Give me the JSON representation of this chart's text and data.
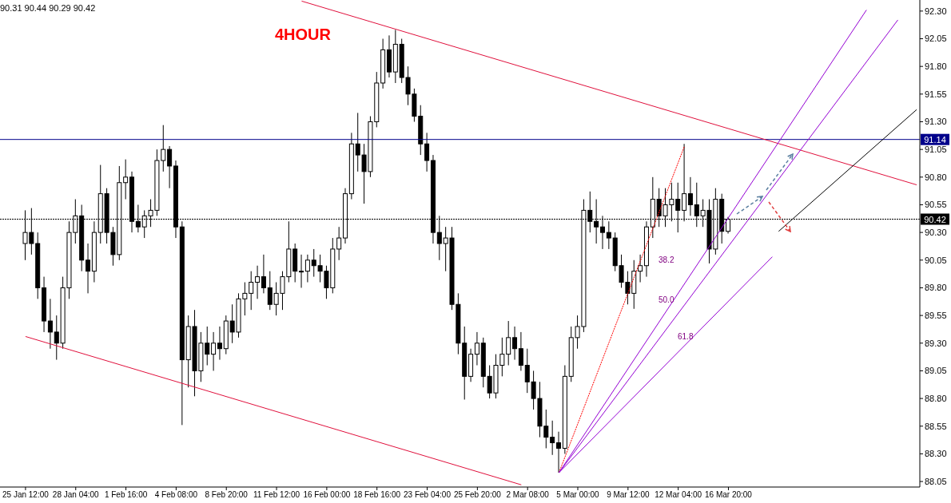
{
  "chart_data": {
    "type": "candlestick",
    "title": "4HOUR",
    "annotations": [
      "90.31 90.44 90.29 90.42",
      "38.2",
      "50.0",
      "61.8"
    ],
    "categories": [
      "25 Jan 12:00",
      null,
      null,
      null,
      null,
      null,
      null,
      null,
      "28 Jan 04:00",
      null,
      null,
      null,
      null,
      null,
      null,
      null,
      "1 Feb 16:00",
      null,
      null,
      null,
      null,
      null,
      null,
      null,
      "4 Feb 08:00",
      null,
      null,
      null,
      null,
      null,
      null,
      null,
      "8 Feb 20:00",
      null,
      null,
      null,
      null,
      null,
      null,
      null,
      "11 Feb 12:00",
      null,
      null,
      null,
      null,
      null,
      null,
      null,
      "16 Feb 00:00",
      null,
      null,
      null,
      null,
      null,
      null,
      null,
      "18 Feb 16:00",
      null,
      null,
      null,
      null,
      null,
      null,
      null,
      "23 Feb 04:00",
      null,
      null,
      null,
      null,
      null,
      null,
      null,
      "25 Feb 20:00",
      null,
      null,
      null,
      null,
      null,
      null,
      null,
      "2 Mar 08:00",
      null,
      null,
      null,
      null,
      null,
      null,
      null,
      "5 Mar 00:00",
      null,
      null,
      null,
      null,
      null,
      null,
      null,
      "9 Mar 12:00",
      null,
      null,
      null,
      null,
      null,
      null,
      null,
      "12 Mar 04:00",
      null,
      null,
      null,
      null,
      null,
      null,
      null,
      "16 Mar 20:00",
      null,
      null,
      null,
      null,
      null,
      null,
      null,
      null,
      null,
      null,
      null,
      null,
      null,
      null,
      null,
      null,
      null,
      null,
      null,
      null,
      null,
      null,
      null,
      null,
      null,
      null,
      null,
      null,
      null,
      null
    ],
    "ohlc": [
      [
        90.2,
        90.5,
        90.05,
        90.3
      ],
      [
        90.3,
        90.52,
        90.1,
        90.2
      ],
      [
        90.2,
        90.3,
        89.7,
        89.8
      ],
      [
        89.8,
        89.9,
        89.4,
        89.5
      ],
      [
        89.5,
        89.7,
        89.25,
        89.4
      ],
      [
        89.4,
        89.55,
        89.15,
        89.3
      ],
      [
        89.3,
        89.9,
        89.25,
        89.8
      ],
      [
        89.8,
        90.4,
        89.7,
        90.3
      ],
      [
        90.3,
        90.6,
        90.2,
        90.45
      ],
      [
        90.45,
        90.55,
        89.95,
        90.05
      ],
      [
        90.05,
        90.2,
        89.75,
        89.95
      ],
      [
        89.95,
        90.4,
        89.85,
        90.3
      ],
      [
        90.3,
        90.91,
        90.2,
        90.65
      ],
      [
        90.65,
        90.7,
        90.2,
        90.3
      ],
      [
        90.3,
        90.35,
        90.0,
        90.1
      ],
      [
        90.1,
        90.9,
        90.05,
        90.75
      ],
      [
        90.75,
        90.96,
        90.6,
        90.8
      ],
      [
        90.8,
        90.85,
        90.3,
        90.4
      ],
      [
        90.4,
        90.55,
        90.3,
        90.35
      ],
      [
        90.35,
        90.5,
        90.25,
        90.45
      ],
      [
        90.45,
        90.6,
        90.35,
        90.5
      ],
      [
        90.5,
        91.05,
        90.45,
        90.95
      ],
      [
        90.95,
        91.27,
        90.85,
        91.05
      ],
      [
        91.05,
        91.08,
        90.7,
        90.9
      ],
      [
        90.9,
        90.95,
        90.25,
        90.35
      ],
      [
        90.35,
        90.4,
        88.56,
        89.15
      ],
      [
        89.15,
        89.55,
        88.9,
        89.45
      ],
      [
        89.45,
        89.6,
        88.82,
        89.05
      ],
      [
        89.05,
        89.4,
        88.95,
        89.3
      ],
      [
        89.3,
        89.45,
        89.1,
        89.2
      ],
      [
        89.2,
        89.4,
        89.05,
        89.3
      ],
      [
        89.3,
        89.45,
        89.15,
        89.25
      ],
      [
        89.25,
        89.55,
        89.2,
        89.5
      ],
      [
        89.5,
        89.65,
        89.3,
        89.4
      ],
      [
        89.4,
        89.75,
        89.35,
        89.7
      ],
      [
        89.7,
        89.85,
        89.55,
        89.75
      ],
      [
        89.75,
        89.95,
        89.6,
        89.85
      ],
      [
        89.85,
        90.0,
        89.7,
        89.9
      ],
      [
        89.9,
        90.1,
        89.75,
        89.8
      ],
      [
        89.8,
        89.95,
        89.6,
        89.65
      ],
      [
        89.65,
        89.85,
        89.55,
        89.75
      ],
      [
        89.75,
        89.95,
        89.6,
        89.9
      ],
      [
        89.9,
        90.4,
        89.85,
        90.15
      ],
      [
        90.15,
        90.2,
        89.85,
        89.95
      ],
      [
        89.95,
        90.1,
        89.8,
        89.95
      ],
      [
        89.95,
        90.1,
        89.85,
        90.05
      ],
      [
        90.05,
        90.15,
        89.9,
        90.0
      ],
      [
        90.0,
        90.1,
        89.85,
        89.95
      ],
      [
        89.95,
        90.0,
        89.7,
        89.8
      ],
      [
        89.8,
        90.25,
        89.75,
        90.15
      ],
      [
        90.15,
        90.35,
        90.05,
        90.25
      ],
      [
        90.25,
        90.7,
        90.2,
        90.65
      ],
      [
        90.65,
        91.2,
        90.6,
        91.1
      ],
      [
        91.1,
        91.38,
        90.85,
        91.0
      ],
      [
        91.0,
        91.1,
        90.56,
        90.85
      ],
      [
        90.85,
        91.35,
        90.8,
        91.3
      ],
      [
        91.3,
        91.75,
        91.25,
        91.65
      ],
      [
        91.65,
        92.05,
        91.6,
        91.95
      ],
      [
        91.95,
        92.08,
        91.7,
        91.75
      ],
      [
        91.75,
        92.13,
        91.65,
        92.0
      ],
      [
        92.0,
        92.05,
        91.65,
        91.7
      ],
      [
        91.7,
        91.8,
        91.45,
        91.55
      ],
      [
        91.55,
        91.6,
        91.3,
        91.35
      ],
      [
        91.35,
        91.45,
        91.0,
        91.1
      ],
      [
        91.1,
        91.2,
        90.85,
        90.95
      ],
      [
        90.95,
        91.0,
        90.2,
        90.3
      ],
      [
        90.3,
        90.45,
        90.05,
        90.2
      ],
      [
        90.2,
        90.35,
        89.95,
        90.25
      ],
      [
        90.25,
        90.35,
        89.6,
        89.65
      ],
      [
        89.65,
        89.75,
        89.2,
        89.3
      ],
      [
        89.3,
        89.45,
        88.79,
        89.0
      ],
      [
        89.0,
        89.25,
        88.95,
        89.2
      ],
      [
        89.2,
        89.4,
        89.1,
        89.3
      ],
      [
        89.3,
        89.35,
        88.9,
        89.0
      ],
      [
        89.0,
        89.1,
        88.8,
        88.85
      ],
      [
        88.85,
        89.2,
        88.8,
        89.1
      ],
      [
        89.1,
        89.35,
        89.0,
        89.2
      ],
      [
        89.2,
        89.5,
        89.1,
        89.35
      ],
      [
        89.35,
        89.45,
        89.15,
        89.25
      ],
      [
        89.25,
        89.4,
        89.05,
        89.1
      ],
      [
        89.1,
        89.25,
        88.85,
        88.95
      ],
      [
        88.95,
        89.05,
        88.7,
        88.8
      ],
      [
        88.8,
        88.95,
        88.45,
        88.55
      ],
      [
        88.55,
        88.7,
        88.35,
        88.45
      ],
      [
        88.45,
        88.6,
        88.29,
        88.4
      ],
      [
        88.4,
        88.5,
        88.13,
        88.35
      ],
      [
        88.35,
        89.1,
        88.3,
        89.0
      ],
      [
        89.0,
        89.45,
        88.95,
        89.35
      ],
      [
        89.35,
        89.55,
        89.25,
        89.45
      ],
      [
        89.45,
        90.6,
        89.4,
        90.5
      ],
      [
        90.5,
        90.67,
        90.3,
        90.4
      ],
      [
        90.4,
        90.6,
        90.2,
        90.35
      ],
      [
        90.35,
        90.45,
        90.15,
        90.3
      ],
      [
        90.3,
        90.4,
        90.15,
        90.25
      ],
      [
        90.25,
        90.3,
        89.95,
        90.0
      ],
      [
        90.0,
        90.1,
        89.8,
        89.85
      ],
      [
        89.85,
        89.95,
        89.65,
        89.75
      ],
      [
        89.75,
        90.05,
        89.61,
        89.95
      ],
      [
        89.95,
        90.1,
        89.85,
        90.0
      ],
      [
        90.0,
        90.4,
        89.9,
        90.35
      ],
      [
        90.35,
        90.8,
        90.25,
        90.6
      ],
      [
        90.6,
        90.7,
        90.35,
        90.45
      ],
      [
        90.45,
        90.7,
        90.35,
        90.55
      ],
      [
        90.55,
        90.75,
        90.4,
        90.6
      ],
      [
        90.6,
        90.75,
        90.3,
        90.5
      ],
      [
        90.5,
        91.1,
        90.4,
        90.65
      ],
      [
        90.65,
        90.8,
        90.45,
        90.55
      ],
      [
        90.55,
        90.75,
        90.35,
        90.45
      ],
      [
        90.45,
        90.6,
        90.35,
        90.5
      ],
      [
        90.5,
        90.6,
        90.02,
        90.15
      ],
      [
        90.15,
        90.7,
        90.1,
        90.6
      ],
      [
        90.6,
        90.65,
        90.2,
        90.31
      ],
      [
        90.31,
        90.44,
        90.29,
        90.42
      ],
      null,
      null,
      null,
      null,
      null,
      null,
      null,
      null,
      null,
      null,
      null,
      null,
      null,
      null,
      null,
      null,
      null,
      null,
      null,
      null,
      null,
      null,
      null,
      null,
      null,
      null,
      null,
      null,
      null,
      null
    ],
    "series": [
      {
        "type": "line",
        "color": "#e0103c",
        "values": [
          null,
          null,
          null,
          null,
          null,
          null,
          null,
          null,
          null,
          null,
          null,
          null,
          null,
          null,
          null,
          null,
          null,
          null,
          null,
          null,
          null,
          null,
          null,
          null,
          null,
          null,
          null,
          null,
          null,
          null,
          null,
          null,
          null,
          null,
          null,
          null,
          null,
          null,
          null,
          null,
          null,
          null,
          null,
          null,
          92.39,
          null,
          null,
          null,
          null,
          null,
          null,
          null,
          null,
          null,
          null,
          null,
          null,
          null,
          null,
          null,
          null,
          null,
          null,
          null,
          null,
          null,
          null,
          null,
          null,
          null,
          null,
          null,
          null,
          null,
          null,
          null,
          null,
          null,
          null,
          null,
          null,
          null,
          null,
          null,
          null,
          null,
          null,
          null,
          null,
          null,
          null,
          null,
          null,
          null,
          null,
          null,
          null,
          null,
          null,
          null,
          null,
          null,
          null,
          null,
          null,
          null,
          null,
          null,
          null,
          null,
          null,
          null,
          null,
          null,
          null,
          null,
          null,
          null,
          null,
          null,
          null,
          null,
          null,
          null,
          null,
          null,
          null,
          null,
          null,
          null,
          null,
          null,
          null,
          null,
          null,
          null,
          null,
          null,
          null,
          null,
          null,
          null,
          90.73
        ]
      },
      {
        "type": "line",
        "color": "#e0103c",
        "values": [
          89.36,
          null,
          null,
          null,
          null,
          null,
          null,
          null,
          null,
          null,
          null,
          null,
          null,
          null,
          null,
          null,
          null,
          null,
          null,
          null,
          null,
          null,
          null,
          null,
          null,
          null,
          null,
          null,
          null,
          null,
          null,
          null,
          null,
          null,
          null,
          null,
          null,
          null,
          null,
          null,
          null,
          null,
          null,
          null,
          null,
          null,
          null,
          null,
          null,
          null,
          null,
          null,
          null,
          null,
          null,
          null,
          null,
          null,
          null,
          null,
          null,
          null,
          null,
          null,
          null,
          null,
          null,
          null,
          null,
          null,
          null,
          null,
          null,
          null,
          null,
          null,
          null,
          null,
          null,
          88.02,
          null,
          null,
          null,
          null,
          null,
          null,
          null,
          null,
          null,
          null,
          null,
          null,
          null,
          null,
          null,
          null,
          null,
          null,
          null,
          null,
          null,
          null,
          null,
          null,
          null,
          null,
          null,
          null,
          null,
          null,
          null,
          null,
          null,
          null,
          null,
          null,
          null,
          null,
          null,
          null,
          null,
          null,
          null,
          null,
          null,
          null,
          null,
          null,
          null,
          null,
          null,
          null,
          null,
          null,
          null,
          null,
          null,
          null,
          null,
          null,
          null,
          null,
          null
        ]
      },
      {
        "type": "line",
        "color": "#ff0000",
        "line_style": "dotted",
        "values": [
          null,
          null,
          null,
          null,
          null,
          null,
          null,
          null,
          null,
          null,
          null,
          null,
          null,
          null,
          null,
          null,
          null,
          null,
          null,
          null,
          null,
          null,
          null,
          null,
          null,
          null,
          null,
          null,
          null,
          null,
          null,
          null,
          null,
          null,
          null,
          null,
          null,
          null,
          null,
          null,
          null,
          null,
          null,
          null,
          null,
          null,
          null,
          null,
          null,
          null,
          null,
          null,
          null,
          null,
          null,
          null,
          null,
          null,
          null,
          null,
          null,
          null,
          null,
          null,
          null,
          null,
          null,
          null,
          null,
          null,
          null,
          null,
          null,
          null,
          null,
          null,
          null,
          null,
          null,
          null,
          null,
          null,
          null,
          null,
          null,
          88.13,
          null,
          null,
          null,
          null,
          null,
          null,
          null,
          null,
          null,
          null,
          null,
          null,
          null,
          null,
          null,
          null,
          null,
          null,
          null,
          91.08,
          null,
          null,
          null,
          null,
          null,
          null,
          null,
          null,
          null,
          null,
          null,
          null,
          null,
          null,
          null,
          null,
          null,
          null,
          null,
          null,
          null,
          null,
          null,
          null,
          null,
          null,
          null,
          null,
          null,
          null,
          null,
          null,
          null,
          null,
          null,
          null,
          null
        ]
      },
      {
        "type": "line",
        "color": "#9400d3",
        "values": [
          null,
          null,
          null,
          null,
          null,
          null,
          null,
          null,
          null,
          null,
          null,
          null,
          null,
          null,
          null,
          null,
          null,
          null,
          null,
          null,
          null,
          null,
          null,
          null,
          null,
          null,
          null,
          null,
          null,
          null,
          null,
          null,
          null,
          null,
          null,
          null,
          null,
          null,
          null,
          null,
          null,
          null,
          null,
          null,
          null,
          null,
          null,
          null,
          null,
          null,
          null,
          null,
          null,
          null,
          null,
          null,
          null,
          null,
          null,
          null,
          null,
          null,
          null,
          null,
          null,
          null,
          null,
          null,
          null,
          null,
          null,
          null,
          null,
          null,
          null,
          null,
          null,
          null,
          null,
          null,
          null,
          null,
          null,
          null,
          null,
          88.13,
          null,
          null,
          null,
          null,
          null,
          null,
          null,
          null,
          null,
          null,
          null,
          null,
          null,
          null,
          null,
          null,
          null,
          null,
          null,
          null,
          null,
          null,
          null,
          null,
          null,
          null,
          null,
          null,
          null,
          null,
          null,
          null,
          null,
          null,
          null,
          null,
          null,
          null,
          null,
          null,
          null,
          null,
          null,
          null,
          null,
          null,
          null,
          null,
          92.31,
          null,
          null,
          null,
          null,
          null,
          null,
          null,
          null
        ]
      },
      {
        "type": "line",
        "color": "#9400d3",
        "values": [
          null,
          null,
          null,
          null,
          null,
          null,
          null,
          null,
          null,
          null,
          null,
          null,
          null,
          null,
          null,
          null,
          null,
          null,
          null,
          null,
          null,
          null,
          null,
          null,
          null,
          null,
          null,
          null,
          null,
          null,
          null,
          null,
          null,
          null,
          null,
          null,
          null,
          null,
          null,
          null,
          null,
          null,
          null,
          null,
          null,
          null,
          null,
          null,
          null,
          null,
          null,
          null,
          null,
          null,
          null,
          null,
          null,
          null,
          null,
          null,
          null,
          null,
          null,
          null,
          null,
          null,
          null,
          null,
          null,
          null,
          null,
          null,
          null,
          null,
          null,
          null,
          null,
          null,
          null,
          null,
          null,
          null,
          null,
          null,
          null,
          88.13,
          null,
          null,
          null,
          null,
          null,
          null,
          null,
          null,
          null,
          null,
          null,
          null,
          null,
          null,
          null,
          null,
          null,
          null,
          null,
          null,
          null,
          null,
          null,
          null,
          null,
          null,
          null,
          null,
          null,
          null,
          null,
          null,
          null,
          null,
          null,
          null,
          null,
          null,
          null,
          null,
          null,
          null,
          null,
          null,
          null,
          null,
          null,
          null,
          null,
          null,
          null,
          null,
          null,
          92.22,
          null,
          null,
          null
        ]
      },
      {
        "type": "line",
        "color": "#9400d3",
        "values": [
          null,
          null,
          null,
          null,
          null,
          null,
          null,
          null,
          null,
          null,
          null,
          null,
          null,
          null,
          null,
          null,
          null,
          null,
          null,
          null,
          null,
          null,
          null,
          null,
          null,
          null,
          null,
          null,
          null,
          null,
          null,
          null,
          null,
          null,
          null,
          null,
          null,
          null,
          null,
          null,
          null,
          null,
          null,
          null,
          null,
          null,
          null,
          null,
          null,
          null,
          null,
          null,
          null,
          null,
          null,
          null,
          null,
          null,
          null,
          null,
          null,
          null,
          null,
          null,
          null,
          null,
          null,
          null,
          null,
          null,
          null,
          null,
          null,
          null,
          null,
          null,
          null,
          null,
          null,
          null,
          null,
          null,
          null,
          null,
          null,
          88.13,
          null,
          null,
          null,
          null,
          null,
          null,
          null,
          null,
          null,
          null,
          null,
          null,
          null,
          null,
          null,
          null,
          null,
          null,
          null,
          null,
          null,
          null,
          null,
          null,
          null,
          null,
          null,
          null,
          null,
          null,
          null,
          null,
          null,
          90.08,
          null,
          null,
          null,
          null,
          null,
          null,
          null,
          null,
          null,
          null,
          null,
          null,
          null,
          null,
          null,
          null,
          null,
          null,
          null,
          null,
          null,
          null,
          null
        ]
      },
      {
        "type": "line",
        "color": "#000000",
        "values": [
          null,
          null,
          null,
          null,
          null,
          null,
          null,
          null,
          null,
          null,
          null,
          null,
          null,
          null,
          null,
          null,
          null,
          null,
          null,
          null,
          null,
          null,
          null,
          null,
          null,
          null,
          null,
          null,
          null,
          null,
          null,
          null,
          null,
          null,
          null,
          null,
          null,
          null,
          null,
          null,
          null,
          null,
          null,
          null,
          null,
          null,
          null,
          null,
          null,
          null,
          null,
          null,
          null,
          null,
          null,
          null,
          null,
          null,
          null,
          null,
          null,
          null,
          null,
          null,
          null,
          null,
          null,
          null,
          null,
          null,
          null,
          null,
          null,
          null,
          null,
          null,
          null,
          null,
          null,
          null,
          null,
          null,
          null,
          null,
          null,
          null,
          null,
          null,
          null,
          null,
          null,
          null,
          null,
          null,
          null,
          null,
          null,
          null,
          null,
          null,
          null,
          null,
          null,
          null,
          null,
          null,
          null,
          null,
          null,
          null,
          null,
          null,
          null,
          null,
          null,
          null,
          null,
          null,
          null,
          null,
          90.31,
          null,
          null,
          null,
          null,
          null,
          null,
          null,
          null,
          null,
          null,
          null,
          null,
          null,
          null,
          null,
          null,
          null,
          null,
          null,
          null,
          null,
          91.41
        ]
      }
    ],
    "ref_lines": [
      {
        "axis": "y",
        "value": 91.14,
        "label": "91.14",
        "color": "#00008b"
      },
      {
        "axis": "y",
        "value": 90.42,
        "label": "90.42",
        "color": "#000000",
        "line_style": "dotted"
      }
    ],
    "ylim": [
      88.0,
      92.4
    ],
    "yticks": [
      88.05,
      {
        "value": 88.3,
        "label": "88.30"
      },
      88.55,
      {
        "value": 88.8,
        "label": "88.80"
      },
      89.05,
      {
        "value": 89.3,
        "label": "89.30"
      },
      89.55,
      {
        "value": 89.8,
        "label": "89.80"
      },
      90.05,
      {
        "value": 90.3,
        "label": "90.30"
      },
      90.55,
      {
        "value": 90.8,
        "label": "90.80"
      },
      91.05,
      {
        "value": 91.3,
        "label": "91.30"
      },
      91.55,
      {
        "value": 91.8,
        "label": "91.80"
      },
      92.05,
      {
        "value": 92.3,
        "label": "92.30"
      }
    ]
  }
}
